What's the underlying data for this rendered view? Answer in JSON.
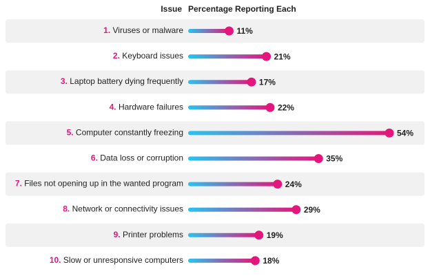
{
  "chart_data": {
    "type": "lollipop",
    "column_headers": [
      "Issue",
      "Percentage Reporting Each"
    ],
    "ranks": [
      "1.",
      "2.",
      "3.",
      "4.",
      "5.",
      "6.",
      "7.",
      "8.",
      "9.",
      "10."
    ],
    "categories": [
      "Viruses or malware",
      "Keyboard issues",
      "Laptop battery dying frequently",
      "Hardware failures",
      "Computer constantly freezing",
      "Data loss or corruption",
      "Files not opening up in the wanted program",
      "Network or connectivity issues",
      "Printer problems",
      "Slow or unresponsive computers"
    ],
    "values": [
      11,
      21,
      17,
      22,
      54,
      35,
      24,
      29,
      19,
      18
    ],
    "value_labels": [
      "11%",
      "21%",
      "17%",
      "22%",
      "54%",
      "35%",
      "24%",
      "29%",
      "19%",
      "18%"
    ],
    "color": "#e3177b",
    "gradient_start": "#26c4f0",
    "rank_color": "#e3177b"
  }
}
